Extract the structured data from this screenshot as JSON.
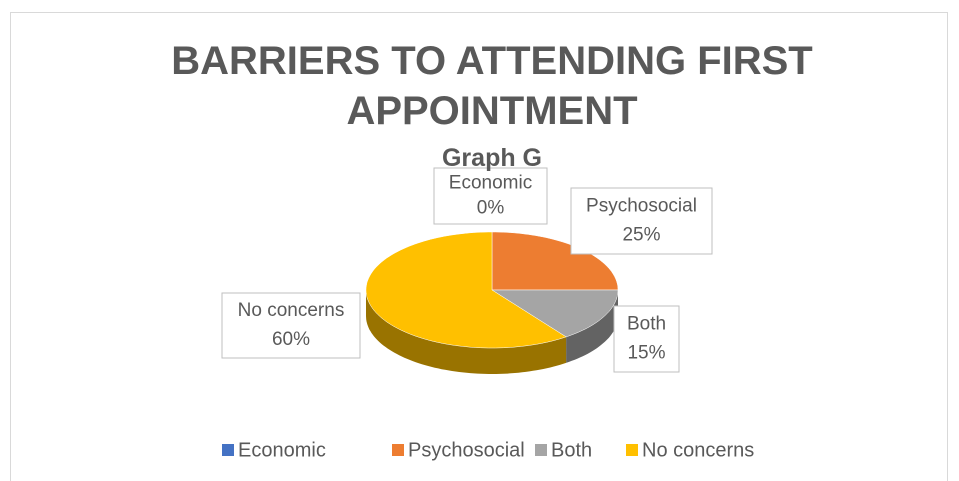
{
  "chart_data": {
    "type": "pie3d",
    "title": "BARRIERS TO ATTENDING FIRST APPOINTMENT",
    "subtitle": "Graph G",
    "categories": [
      "Economic",
      "Psychosocial",
      "Both",
      "No concerns"
    ],
    "values": [
      0,
      25,
      15,
      60
    ],
    "value_labels": [
      "0%",
      "25%",
      "15%",
      "60%"
    ],
    "colors": [
      "#4472c4",
      "#ed7d31",
      "#a5a5a5",
      "#ffc000"
    ],
    "legend": "bottom"
  }
}
